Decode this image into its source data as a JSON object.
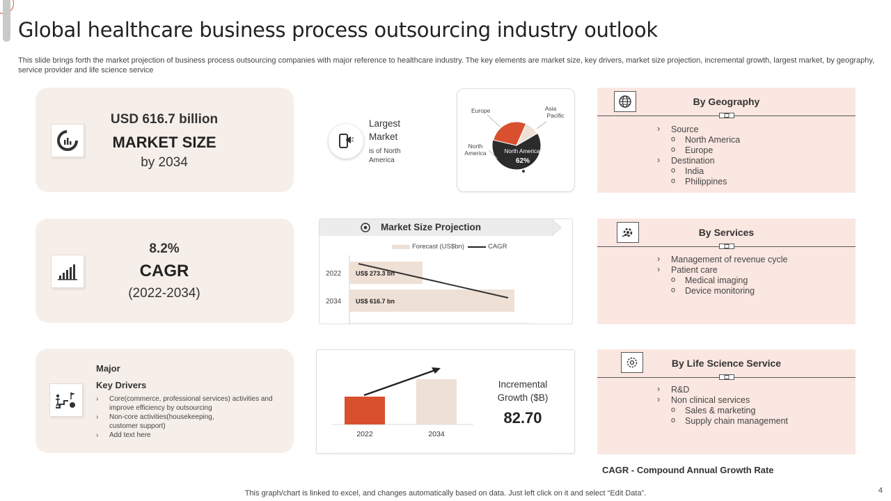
{
  "header": {
    "title": "Global healthcare business process outsourcing industry outlook",
    "subtitle": "This slide brings forth the market projection of business process outsourcing companies with major reference to healthcare industry. The key elements are market size, key drivers, market size projection, incremental growth, largest market, by geography, service provider and life science service"
  },
  "market_size": {
    "line1": "USD 616.7 billion",
    "line2": "MARKET SIZE",
    "line3": "by 2034"
  },
  "cagr": {
    "line1": "8.2%",
    "line2": "CAGR",
    "line3": "(2022-2034)"
  },
  "drivers": {
    "title1": "Major",
    "title2": "Key Drivers",
    "items": [
      "Core(commerce, professional services) activities and improve efficiency by outsourcing",
      "Non-core activities(housekeeping, customer support)",
      "Add text here"
    ]
  },
  "largest_market": {
    "title1": "Largest",
    "title2": "Market",
    "desc": "is of North America"
  },
  "pie": {
    "labels": {
      "europe": "Europe",
      "asia": "Asia Pacific",
      "north_america": "North America"
    },
    "callout_name": "North America",
    "callout_value": "62%"
  },
  "projection": {
    "title": "Market Size Projection",
    "legend_forecast": "Forecast (US$bn)",
    "legend_cagr": "CAGR"
  },
  "incremental": {
    "label": "Incremental Growth ($B)",
    "value": "82.70"
  },
  "geography": {
    "title": "By Geography",
    "items": [
      {
        "level": 1,
        "text": "Source"
      },
      {
        "level": 2,
        "text": "North America"
      },
      {
        "level": 2,
        "text": "Europe"
      },
      {
        "level": 1,
        "text": "Destination"
      },
      {
        "level": 2,
        "text": "India"
      },
      {
        "level": 2,
        "text": "Philippines"
      }
    ]
  },
  "services": {
    "title": "By Services",
    "items": [
      {
        "level": 1,
        "text": "Management of revenue  cycle"
      },
      {
        "level": 1,
        "text": "Patient care"
      },
      {
        "level": 2,
        "text": "Medical imaging"
      },
      {
        "level": 2,
        "text": "Device monitoring"
      }
    ]
  },
  "life_science": {
    "title": "By Life Science Service",
    "items": [
      {
        "level": 1,
        "text": "R&D"
      },
      {
        "level": 1,
        "text": "Non clinical services"
      },
      {
        "level": 2,
        "text": "Sales & marketing"
      },
      {
        "level": 2,
        "text": "Supply chain management"
      }
    ]
  },
  "cagr_definition": "CAGR - Compound Annual Growth Rate",
  "footnote": "This graph/chart is linked to excel,  and changes automatically based on data. Just left click on it and select “Edit Data”.",
  "slide_number": "4",
  "colors": {
    "accent": "#d9502f",
    "beige": "#f6efe9",
    "pink": "#fbe7e1",
    "bar_light": "#efe0d6",
    "dark": "#2b2b2b"
  },
  "chart_data": [
    {
      "type": "pie",
      "title": "",
      "categories": [
        "North America",
        "Europe",
        "Asia Pacific"
      ],
      "values": [
        62,
        28,
        10
      ]
    },
    {
      "type": "bar",
      "orientation": "horizontal",
      "title": "Market Size Projection",
      "categories": [
        "2022",
        "2034"
      ],
      "series": [
        {
          "name": "Forecast (US$bn)",
          "values": [
            273.3,
            616.7
          ],
          "labels": [
            "US$ 273.3 bn",
            "US$ 616.7 bn"
          ]
        },
        {
          "name": "CAGR",
          "type": "line",
          "values": [
            273.3,
            616.7
          ]
        }
      ]
    },
    {
      "type": "bar",
      "title": "Incremental Growth ($B)",
      "categories": [
        "2022",
        "2034"
      ],
      "values": [
        40,
        65
      ],
      "ylim": [
        0,
        100
      ]
    }
  ]
}
